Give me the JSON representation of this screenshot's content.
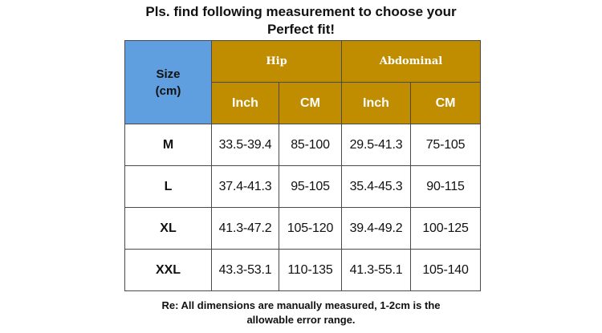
{
  "title": {
    "line1": "Pls. find following measurement to choose your",
    "line2": "Perfect fit!"
  },
  "table": {
    "corner_line1": "Size",
    "corner_line2": "(cm)",
    "groups": [
      "Hip",
      "Abdominal"
    ],
    "units": [
      "Inch",
      "CM",
      "Inch",
      "CM"
    ],
    "rows": [
      {
        "size": "M",
        "cells": [
          "33.5-39.4",
          "85-100",
          "29.5-41.3",
          "75-105"
        ]
      },
      {
        "size": "L",
        "cells": [
          "37.4-41.3",
          "95-105",
          "35.4-45.3",
          "90-115"
        ]
      },
      {
        "size": "XL",
        "cells": [
          "41.3-47.2",
          "105-120",
          "39.4-49.2",
          "100-125"
        ]
      },
      {
        "size": "XXL",
        "cells": [
          "43.3-53.1",
          "110-135",
          "41.3-55.1",
          "105-140"
        ]
      }
    ]
  },
  "note": {
    "line1": "Re: All dimensions are manually measured, 1-2cm is the",
    "line2": "allowable error range."
  },
  "colors": {
    "corner_header": "#5f9fdf",
    "group_header": "#c08d00",
    "border": "#4a4a4a"
  }
}
